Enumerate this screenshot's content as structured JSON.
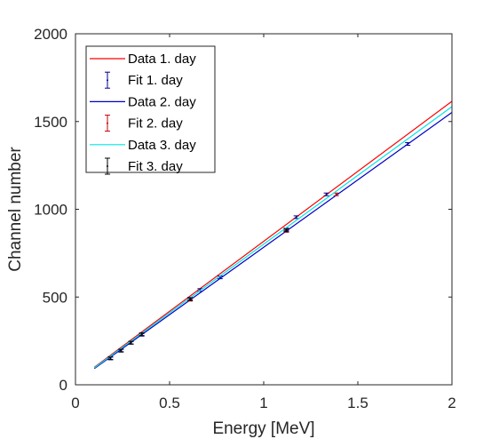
{
  "chart_data": {
    "type": "line",
    "title": "",
    "xlabel": "Energy [MeV]",
    "ylabel": "Channel number",
    "xlim": [
      0,
      2
    ],
    "ylim": [
      0,
      2000
    ],
    "xticks": [
      0,
      0.5,
      1,
      1.5,
      2
    ],
    "xtick_labels": [
      "0",
      "0.5",
      "1",
      "1.5",
      "2"
    ],
    "yticks": [
      0,
      500,
      1000,
      1500,
      2000
    ],
    "ytick_labels": [
      "0",
      "500",
      "1000",
      "1500",
      "2000"
    ],
    "grid": false,
    "legend_position": "top-left",
    "series": [
      {
        "name": "Data 1. day",
        "kind": "line",
        "color": "#ff0000",
        "x": [
          0.1,
          2.0
        ],
        "y": [
          100,
          1615
        ]
      },
      {
        "name": "Fit 1. day",
        "kind": "errorbar",
        "color": "#00008b",
        "x": [
          0.186,
          0.242,
          0.295,
          0.352,
          0.609,
          0.662,
          0.768,
          1.12,
          1.173,
          1.333,
          1.765
        ],
        "y": [
          152,
          196,
          239,
          285,
          490,
          540,
          612,
          885,
          955,
          1085,
          1372
        ]
      },
      {
        "name": "Data 2. day",
        "kind": "line",
        "color": "#0000c8",
        "x": [
          0.1,
          2.0
        ],
        "y": [
          92,
          1552
        ]
      },
      {
        "name": "Fit 2. day",
        "kind": "errorbar",
        "color": "#c00000",
        "x": [
          0.609,
          1.12,
          1.385
        ],
        "y": [
          485,
          877,
          1085
        ]
      },
      {
        "name": "Data 3. day",
        "kind": "line",
        "color": "#00e5e5",
        "x": [
          0.1,
          2.0
        ],
        "y": [
          96,
          1585
        ]
      },
      {
        "name": "Fit 3. day",
        "kind": "errorbar",
        "color": "#000000",
        "x": [
          0.186,
          0.242,
          0.295,
          0.352,
          0.609,
          1.12
        ],
        "y": [
          150,
          194,
          240,
          288,
          488,
          880
        ]
      }
    ]
  }
}
